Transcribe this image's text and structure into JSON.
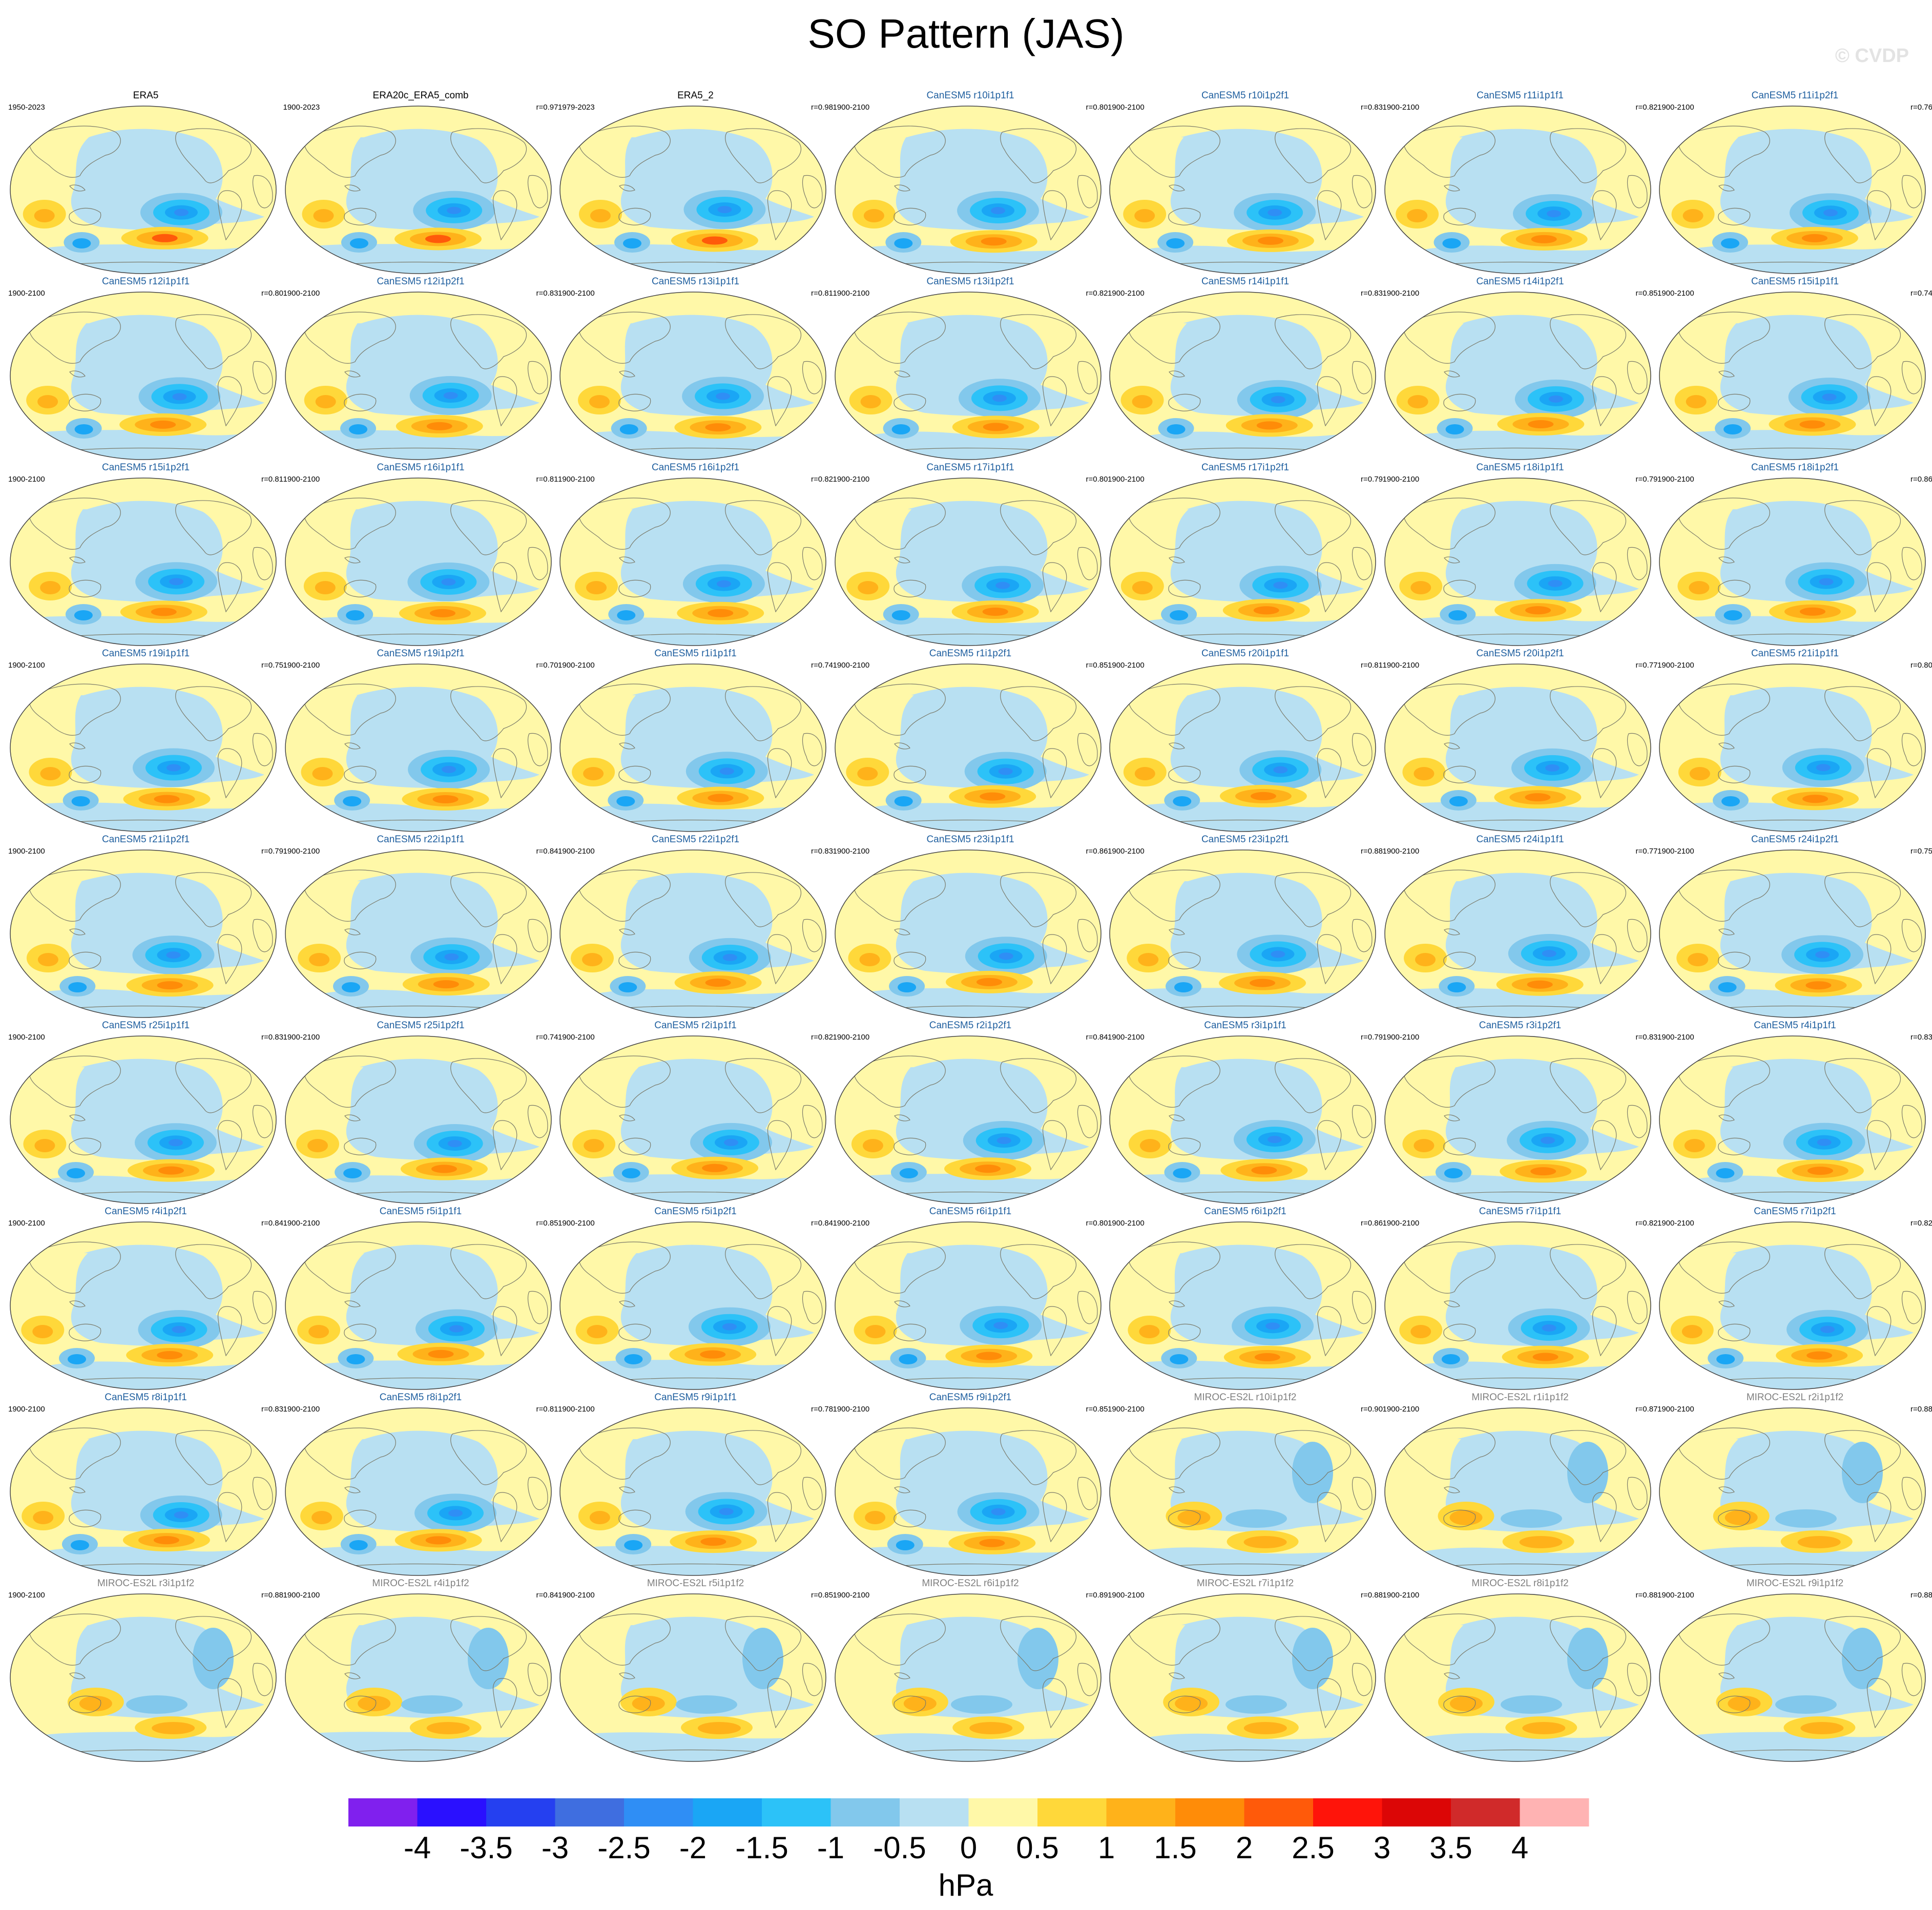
{
  "title": "SO Pattern (JAS)",
  "watermark": "© CVDP",
  "colors": {
    "obs_title": "#000000",
    "canesm_title": "#1f5f9f",
    "miroc_title": "#808080"
  },
  "panels": [
    {
      "name": "ERA5",
      "period": "1950-2023",
      "corr": "",
      "group": "obs"
    },
    {
      "name": "ERA20c_ERA5_comb",
      "period": "1900-2023",
      "corr": "r=0.97",
      "group": "obs"
    },
    {
      "name": "ERA5_2",
      "period": "1979-2023",
      "corr": "r=0.98",
      "group": "obs"
    },
    {
      "name": "CanESM5 r10i1p1f1",
      "period": "1900-2100",
      "corr": "r=0.80",
      "group": "canesm"
    },
    {
      "name": "CanESM5 r10i1p2f1",
      "period": "1900-2100",
      "corr": "r=0.83",
      "group": "canesm"
    },
    {
      "name": "CanESM5 r11i1p1f1",
      "period": "1900-2100",
      "corr": "r=0.82",
      "group": "canesm"
    },
    {
      "name": "CanESM5 r11i1p2f1",
      "period": "1900-2100",
      "corr": "r=0.76",
      "group": "canesm"
    },
    {
      "name": "CanESM5 r12i1p1f1",
      "period": "1900-2100",
      "corr": "r=0.80",
      "group": "canesm"
    },
    {
      "name": "CanESM5 r12i1p2f1",
      "period": "1900-2100",
      "corr": "r=0.83",
      "group": "canesm"
    },
    {
      "name": "CanESM5 r13i1p1f1",
      "period": "1900-2100",
      "corr": "r=0.81",
      "group": "canesm"
    },
    {
      "name": "CanESM5 r13i1p2f1",
      "period": "1900-2100",
      "corr": "r=0.82",
      "group": "canesm"
    },
    {
      "name": "CanESM5 r14i1p1f1",
      "period": "1900-2100",
      "corr": "r=0.83",
      "group": "canesm"
    },
    {
      "name": "CanESM5 r14i1p2f1",
      "period": "1900-2100",
      "corr": "r=0.85",
      "group": "canesm"
    },
    {
      "name": "CanESM5 r15i1p1f1",
      "period": "1900-2100",
      "corr": "r=0.74",
      "group": "canesm"
    },
    {
      "name": "CanESM5 r15i1p2f1",
      "period": "1900-2100",
      "corr": "r=0.81",
      "group": "canesm"
    },
    {
      "name": "CanESM5 r16i1p1f1",
      "period": "1900-2100",
      "corr": "r=0.81",
      "group": "canesm"
    },
    {
      "name": "CanESM5 r16i1p2f1",
      "period": "1900-2100",
      "corr": "r=0.82",
      "group": "canesm"
    },
    {
      "name": "CanESM5 r17i1p1f1",
      "period": "1900-2100",
      "corr": "r=0.80",
      "group": "canesm"
    },
    {
      "name": "CanESM5 r17i1p2f1",
      "period": "1900-2100",
      "corr": "r=0.79",
      "group": "canesm"
    },
    {
      "name": "CanESM5 r18i1p1f1",
      "period": "1900-2100",
      "corr": "r=0.79",
      "group": "canesm"
    },
    {
      "name": "CanESM5 r18i1p2f1",
      "period": "1900-2100",
      "corr": "r=0.86",
      "group": "canesm"
    },
    {
      "name": "CanESM5 r19i1p1f1",
      "period": "1900-2100",
      "corr": "r=0.75",
      "group": "canesm"
    },
    {
      "name": "CanESM5 r19i1p2f1",
      "period": "1900-2100",
      "corr": "r=0.70",
      "group": "canesm"
    },
    {
      "name": "CanESM5 r1i1p1f1",
      "period": "1900-2100",
      "corr": "r=0.74",
      "group": "canesm"
    },
    {
      "name": "CanESM5 r1i1p2f1",
      "period": "1900-2100",
      "corr": "r=0.85",
      "group": "canesm"
    },
    {
      "name": "CanESM5 r20i1p1f1",
      "period": "1900-2100",
      "corr": "r=0.81",
      "group": "canesm"
    },
    {
      "name": "CanESM5 r20i1p2f1",
      "period": "1900-2100",
      "corr": "r=0.77",
      "group": "canesm"
    },
    {
      "name": "CanESM5 r21i1p1f1",
      "period": "1900-2100",
      "corr": "r=0.80",
      "group": "canesm"
    },
    {
      "name": "CanESM5 r21i1p2f1",
      "period": "1900-2100",
      "corr": "r=0.79",
      "group": "canesm"
    },
    {
      "name": "CanESM5 r22i1p1f1",
      "period": "1900-2100",
      "corr": "r=0.84",
      "group": "canesm"
    },
    {
      "name": "CanESM5 r22i1p2f1",
      "period": "1900-2100",
      "corr": "r=0.83",
      "group": "canesm"
    },
    {
      "name": "CanESM5 r23i1p1f1",
      "period": "1900-2100",
      "corr": "r=0.86",
      "group": "canesm"
    },
    {
      "name": "CanESM5 r23i1p2f1",
      "period": "1900-2100",
      "corr": "r=0.88",
      "group": "canesm"
    },
    {
      "name": "CanESM5 r24i1p1f1",
      "period": "1900-2100",
      "corr": "r=0.77",
      "group": "canesm"
    },
    {
      "name": "CanESM5 r24i1p2f1",
      "period": "1900-2100",
      "corr": "r=0.75",
      "group": "canesm"
    },
    {
      "name": "CanESM5 r25i1p1f1",
      "period": "1900-2100",
      "corr": "r=0.83",
      "group": "canesm"
    },
    {
      "name": "CanESM5 r25i1p2f1",
      "period": "1900-2100",
      "corr": "r=0.74",
      "group": "canesm"
    },
    {
      "name": "CanESM5 r2i1p1f1",
      "period": "1900-2100",
      "corr": "r=0.82",
      "group": "canesm"
    },
    {
      "name": "CanESM5 r2i1p2f1",
      "period": "1900-2100",
      "corr": "r=0.84",
      "group": "canesm"
    },
    {
      "name": "CanESM5 r3i1p1f1",
      "period": "1900-2100",
      "corr": "r=0.79",
      "group": "canesm"
    },
    {
      "name": "CanESM5 r3i1p2f1",
      "period": "1900-2100",
      "corr": "r=0.83",
      "group": "canesm"
    },
    {
      "name": "CanESM5 r4i1p1f1",
      "period": "1900-2100",
      "corr": "r=0.83",
      "group": "canesm"
    },
    {
      "name": "CanESM5 r4i1p2f1",
      "period": "1900-2100",
      "corr": "r=0.84",
      "group": "canesm"
    },
    {
      "name": "CanESM5 r5i1p1f1",
      "period": "1900-2100",
      "corr": "r=0.85",
      "group": "canesm"
    },
    {
      "name": "CanESM5 r5i1p2f1",
      "period": "1900-2100",
      "corr": "r=0.84",
      "group": "canesm"
    },
    {
      "name": "CanESM5 r6i1p1f1",
      "period": "1900-2100",
      "corr": "r=0.80",
      "group": "canesm"
    },
    {
      "name": "CanESM5 r6i1p2f1",
      "period": "1900-2100",
      "corr": "r=0.86",
      "group": "canesm"
    },
    {
      "name": "CanESM5 r7i1p1f1",
      "period": "1900-2100",
      "corr": "r=0.82",
      "group": "canesm"
    },
    {
      "name": "CanESM5 r7i1p2f1",
      "period": "1900-2100",
      "corr": "r=0.82",
      "group": "canesm"
    },
    {
      "name": "CanESM5 r8i1p1f1",
      "period": "1900-2100",
      "corr": "r=0.83",
      "group": "canesm"
    },
    {
      "name": "CanESM5 r8i1p2f1",
      "period": "1900-2100",
      "corr": "r=0.81",
      "group": "canesm"
    },
    {
      "name": "CanESM5 r9i1p1f1",
      "period": "1900-2100",
      "corr": "r=0.78",
      "group": "canesm"
    },
    {
      "name": "CanESM5 r9i1p2f1",
      "period": "1900-2100",
      "corr": "r=0.85",
      "group": "canesm"
    },
    {
      "name": "MIROC-ES2L r10i1p1f2",
      "period": "1900-2100",
      "corr": "r=0.90",
      "group": "miroc"
    },
    {
      "name": "MIROC-ES2L r1i1p1f2",
      "period": "1900-2100",
      "corr": "r=0.87",
      "group": "miroc"
    },
    {
      "name": "MIROC-ES2L r2i1p1f2",
      "period": "1900-2100",
      "corr": "r=0.88",
      "group": "miroc"
    },
    {
      "name": "MIROC-ES2L r3i1p1f2",
      "period": "1900-2100",
      "corr": "r=0.88",
      "group": "miroc"
    },
    {
      "name": "MIROC-ES2L r4i1p1f2",
      "period": "1900-2100",
      "corr": "r=0.84",
      "group": "miroc"
    },
    {
      "name": "MIROC-ES2L r5i1p1f2",
      "period": "1900-2100",
      "corr": "r=0.85",
      "group": "miroc"
    },
    {
      "name": "MIROC-ES2L r6i1p1f2",
      "period": "1900-2100",
      "corr": "r=0.89",
      "group": "miroc"
    },
    {
      "name": "MIROC-ES2L r7i1p1f2",
      "period": "1900-2100",
      "corr": "r=0.88",
      "group": "miroc"
    },
    {
      "name": "MIROC-ES2L r8i1p1f2",
      "period": "1900-2100",
      "corr": "r=0.88",
      "group": "miroc"
    },
    {
      "name": "MIROC-ES2L r9i1p1f2",
      "period": "1900-2100",
      "corr": "r=0.88",
      "group": "miroc"
    }
  ],
  "colorbar": {
    "units": "hPa",
    "labels": [
      "-4",
      "-3.5",
      "-3",
      "-2.5",
      "-2",
      "-1.5",
      "-1",
      "-0.5",
      "0",
      "0.5",
      "1",
      "1.5",
      "2",
      "2.5",
      "3",
      "3.5",
      "4"
    ],
    "colors": [
      "#8020ee",
      "#2a10ff",
      "#2540f0",
      "#3f6ee0",
      "#2f8ef5",
      "#1aa6f5",
      "#2cc2f8",
      "#82c8ec",
      "#b8e0f2",
      "#fff8a8",
      "#ffd83a",
      "#ffb21a",
      "#ff8c08",
      "#ff5a0a",
      "#ff140a",
      "#dc0606",
      "#d02a2a",
      "#ffb3b3"
    ]
  }
}
